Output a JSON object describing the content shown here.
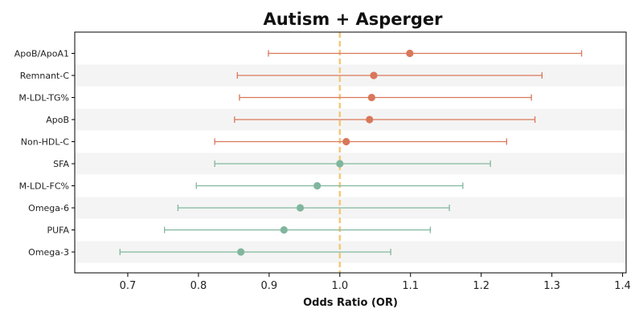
{
  "chart_data": {
    "type": "forest",
    "title": "Autism + Asperger",
    "xlabel": "Odds Ratio (OR)",
    "ylabel": "",
    "xlim": [
      0.625,
      1.405
    ],
    "x_ticks": [
      "0.7",
      "0.8",
      "0.9",
      "1.0",
      "1.1",
      "1.2",
      "1.3",
      "1.4"
    ],
    "reference_line": 1.0,
    "grid": false,
    "colors": {
      "above": "#D9775A",
      "below": "#80B69E",
      "reference": "#F4C87A",
      "band": "#F4F4F4"
    },
    "rows": [
      {
        "label": "ApoB/ApoA1",
        "or": 1.099,
        "lower": 0.899,
        "upper": 1.342,
        "color": "#D9775A"
      },
      {
        "label": "Remnant-C",
        "or": 1.048,
        "lower": 0.855,
        "upper": 1.286,
        "color": "#D9775A"
      },
      {
        "label": "M-LDL-TG%",
        "or": 1.045,
        "lower": 0.858,
        "upper": 1.271,
        "color": "#D9775A"
      },
      {
        "label": "ApoB",
        "or": 1.042,
        "lower": 0.851,
        "upper": 1.276,
        "color": "#D9775A"
      },
      {
        "label": "Non-HDL-C",
        "or": 1.009,
        "lower": 0.823,
        "upper": 1.236,
        "color": "#D9775A"
      },
      {
        "label": "SFA",
        "or": 1.0,
        "lower": 0.823,
        "upper": 1.213,
        "color": "#80B69E"
      },
      {
        "label": "M-LDL-FC%",
        "or": 0.968,
        "lower": 0.797,
        "upper": 1.174,
        "color": "#80B69E"
      },
      {
        "label": "Omega-6",
        "or": 0.944,
        "lower": 0.771,
        "upper": 1.155,
        "color": "#80B69E"
      },
      {
        "label": "PUFA",
        "or": 0.921,
        "lower": 0.752,
        "upper": 1.128,
        "color": "#80B69E"
      },
      {
        "label": "Omega-3",
        "or": 0.86,
        "lower": 0.689,
        "upper": 1.072,
        "color": "#80B69E"
      }
    ]
  }
}
